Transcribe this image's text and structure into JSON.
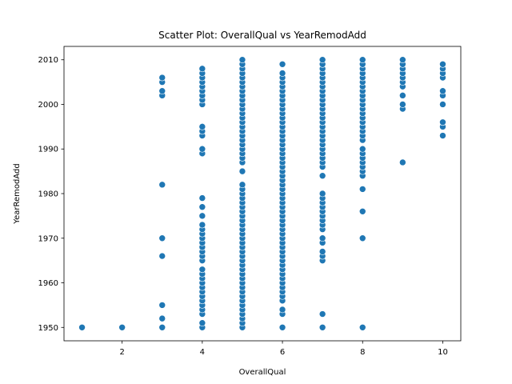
{
  "chart_data": {
    "type": "scatter",
    "title": "Scatter Plot: OverallQual vs YearRemodAdd",
    "xlabel": "OverallQual",
    "ylabel": "YearRemodAdd",
    "xlim": [
      0.55,
      10.45
    ],
    "ylim": [
      1947,
      2013
    ],
    "xticks": [
      2,
      4,
      6,
      8,
      10
    ],
    "yticks": [
      1950,
      1960,
      1970,
      1980,
      1990,
      2000,
      2010
    ],
    "grid": false,
    "marker_color": "#1f77b4",
    "marker_edge": "#ffffff",
    "points_by_x": {
      "1": [
        1950
      ],
      "2": [
        1950
      ],
      "3": [
        1950,
        1952,
        1955,
        1966,
        1970,
        1982,
        2002,
        2003,
        2005,
        2006
      ],
      "4": [
        1950,
        1951,
        1953,
        1954,
        1955,
        1956,
        1957,
        1958,
        1959,
        1960,
        1961,
        1962,
        1963,
        1965,
        1966,
        1967,
        1968,
        1969,
        1970,
        1971,
        1972,
        1973,
        1975,
        1977,
        1979,
        1989,
        1990,
        1993,
        1994,
        1995,
        2000,
        2001,
        2002,
        2003,
        2004,
        2005,
        2006,
        2007,
        2008
      ],
      "5": [
        1950,
        1951,
        1952,
        1953,
        1954,
        1955,
        1956,
        1957,
        1958,
        1959,
        1960,
        1961,
        1962,
        1963,
        1964,
        1965,
        1966,
        1967,
        1968,
        1969,
        1970,
        1971,
        1972,
        1973,
        1974,
        1975,
        1976,
        1977,
        1978,
        1979,
        1980,
        1981,
        1982,
        1985,
        1987,
        1988,
        1989,
        1990,
        1991,
        1992,
        1993,
        1994,
        1995,
        1996,
        1997,
        1998,
        1999,
        2000,
        2001,
        2002,
        2003,
        2004,
        2005,
        2006,
        2007,
        2008,
        2009,
        2010
      ],
      "6": [
        1950,
        1953,
        1954,
        1956,
        1957,
        1958,
        1959,
        1960,
        1961,
        1962,
        1963,
        1964,
        1965,
        1966,
        1967,
        1968,
        1969,
        1970,
        1971,
        1972,
        1973,
        1974,
        1975,
        1976,
        1977,
        1978,
        1979,
        1980,
        1981,
        1982,
        1983,
        1984,
        1985,
        1986,
        1987,
        1988,
        1989,
        1990,
        1991,
        1992,
        1993,
        1994,
        1995,
        1996,
        1997,
        1998,
        1999,
        2000,
        2001,
        2002,
        2003,
        2004,
        2005,
        2006,
        2007,
        2009
      ],
      "7": [
        1950,
        1953,
        1965,
        1966,
        1967,
        1969,
        1970,
        1972,
        1973,
        1974,
        1975,
        1976,
        1977,
        1978,
        1979,
        1980,
        1984,
        1986,
        1987,
        1988,
        1989,
        1990,
        1991,
        1992,
        1993,
        1994,
        1995,
        1996,
        1997,
        1998,
        1999,
        2000,
        2001,
        2002,
        2003,
        2004,
        2005,
        2006,
        2007,
        2008,
        2009,
        2010
      ],
      "8": [
        1950,
        1970,
        1976,
        1981,
        1984,
        1985,
        1986,
        1987,
        1988,
        1989,
        1990,
        1992,
        1993,
        1994,
        1995,
        1996,
        1997,
        1998,
        1999,
        2000,
        2001,
        2002,
        2003,
        2004,
        2005,
        2006,
        2007,
        2008,
        2009,
        2010
      ],
      "9": [
        1987,
        1999,
        2000,
        2002,
        2004,
        2005,
        2006,
        2007,
        2008,
        2009,
        2010
      ],
      "10": [
        1993,
        1995,
        1996,
        2000,
        2002,
        2003,
        2006,
        2007,
        2008,
        2009
      ]
    }
  }
}
